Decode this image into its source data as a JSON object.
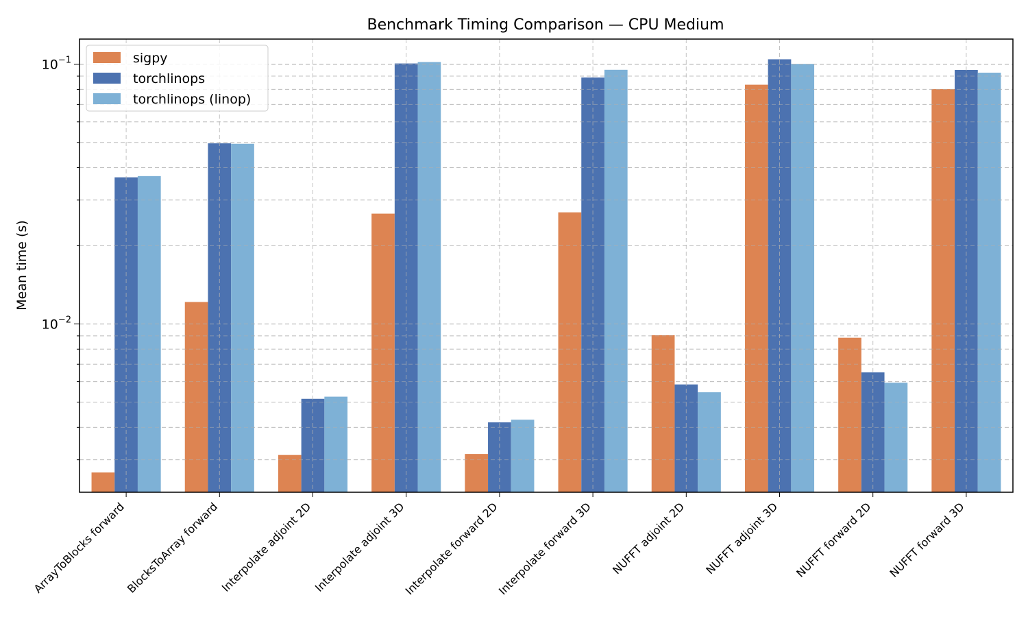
{
  "chart_data": {
    "type": "bar",
    "title": "Benchmark Timing Comparison — CPU Medium",
    "xlabel": "",
    "ylabel": "Mean time (s)",
    "yscale": "log",
    "ylim": [
      0.00225,
      0.125
    ],
    "y_ticks": [
      {
        "value": 0.1,
        "base": "10",
        "exp": "−1"
      },
      {
        "value": 0.01,
        "base": "10",
        "exp": "−2"
      }
    ],
    "grid": true,
    "legend_position": "top-left",
    "categories": [
      "ArrayToBlocks forward",
      "BlocksToArray forward",
      "Interpolate adjoint 2D",
      "Interpolate adjoint 3D",
      "Interpolate forward 2D",
      "Interpolate forward 3D",
      "NUFFT adjoint 2D",
      "NUFFT adjoint 3D",
      "NUFFT forward 2D",
      "NUFFT forward 3D"
    ],
    "series": [
      {
        "name": "sigpy",
        "color": "#dd8452",
        "values": [
          0.00268,
          0.01215,
          0.00313,
          0.0266,
          0.00316,
          0.0269,
          0.00905,
          0.0834,
          0.00885,
          0.0802
        ]
      },
      {
        "name": "torchlinops",
        "color": "#4c72b0",
        "values": [
          0.0367,
          0.0496,
          0.00515,
          0.1007,
          0.00418,
          0.0889,
          0.00585,
          0.1045,
          0.00651,
          0.0951
        ]
      },
      {
        "name": "torchlinops (linop)",
        "color": "#7eb1d6",
        "values": [
          0.0371,
          0.0494,
          0.00525,
          0.102,
          0.00428,
          0.0952,
          0.00546,
          0.1003,
          0.00594,
          0.0928
        ]
      }
    ]
  }
}
